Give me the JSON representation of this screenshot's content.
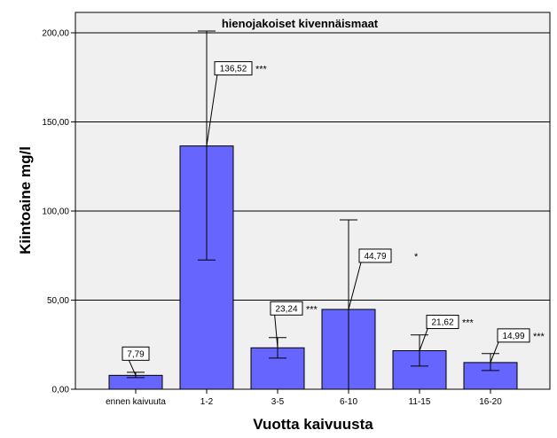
{
  "chart_data": {
    "type": "bar",
    "title": "hienojakoiset kivennäismaat",
    "xlabel": "Vuotta kaivuusta",
    "ylabel": "Kiintoaine mg/l",
    "ylim": [
      0,
      210
    ],
    "yticks": [
      0,
      50,
      100,
      150,
      200
    ],
    "ytick_labels": [
      "0,00",
      "50,00",
      "100,00",
      "150,00",
      "200,00"
    ],
    "grid": true,
    "colors": {
      "bar": "#6666ff",
      "plot_bg": "#f0f0f0",
      "grid": "#000000"
    },
    "categories": [
      "ennen kaivuuta",
      "1-2",
      "3-5",
      "6-10",
      "11-15",
      "16-20"
    ],
    "values": [
      7.79,
      136.52,
      23.24,
      44.79,
      21.62,
      14.99
    ],
    "value_labels": [
      "7,79",
      "136,52",
      "23,24",
      "44,79",
      "21,62",
      "14,99"
    ],
    "error_low": [
      6.5,
      72.5,
      17.5,
      0,
      13,
      10.5
    ],
    "error_high": [
      9.5,
      201,
      29,
      95,
      30.5,
      20
    ],
    "significance": [
      "",
      "***",
      "***",
      "*",
      "***",
      "***"
    ]
  }
}
